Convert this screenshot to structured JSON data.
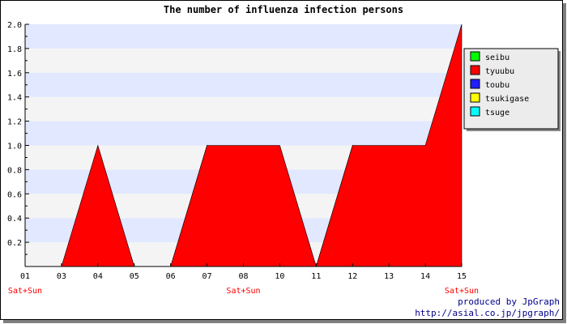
{
  "colors": {
    "band_light": "#e1e8ff",
    "band_pale": "#f4f4f4",
    "axis": "#000000",
    "tick_text": "#000000",
    "weekend_text": "#ff0000",
    "credit_text": "#00008b",
    "legend_bg": "#ececec",
    "legend_shadow": "#888888"
  },
  "credits": {
    "line1": "produced by JpGraph",
    "line2": "http://asial.co.jp/jpgraph/"
  },
  "chart_data": {
    "type": "area",
    "title": "The number of influenza infection persons",
    "xlabel": "",
    "ylabel": "",
    "categories": [
      "01",
      "03",
      "04",
      "05",
      "06",
      "07",
      "08",
      "10",
      "11",
      "12",
      "13",
      "14",
      "15"
    ],
    "weekend_labels": [
      {
        "category": "01",
        "text": "Sat+Sun"
      },
      {
        "category": "08",
        "text": "Sat+Sun"
      },
      {
        "category": "15",
        "text": "Sat+Sun"
      }
    ],
    "ylim": [
      0,
      2.0
    ],
    "yticks": [
      "0.2",
      "0.4",
      "0.6",
      "0.8",
      "1.0",
      "1.2",
      "1.4",
      "1.6",
      "1.8",
      "2.0"
    ],
    "grid": "horizontal bands",
    "legend_position": "right",
    "series": [
      {
        "name": "seibu",
        "color": "#00ff00",
        "values": [
          0,
          0,
          0,
          0,
          0,
          1,
          0,
          0,
          0,
          1,
          0,
          0,
          0
        ]
      },
      {
        "name": "tyuubu",
        "color": "#ff0000",
        "values": [
          0,
          0,
          1,
          0,
          0,
          1,
          1,
          1,
          0,
          1,
          1,
          1,
          2
        ]
      },
      {
        "name": "toubu",
        "color": "#2020ff",
        "values": [
          0,
          0,
          0,
          0,
          0,
          0,
          0,
          0,
          0,
          0,
          0,
          0,
          0
        ]
      },
      {
        "name": "tsukigase",
        "color": "#ffff00",
        "values": [
          0,
          0,
          0,
          0,
          0,
          0,
          0,
          0,
          0,
          0,
          0,
          0,
          0
        ]
      },
      {
        "name": "tsuge",
        "color": "#00ffff",
        "values": [
          0,
          0,
          0,
          0,
          0,
          0,
          0,
          0,
          0,
          0,
          0,
          0,
          0
        ]
      }
    ]
  }
}
